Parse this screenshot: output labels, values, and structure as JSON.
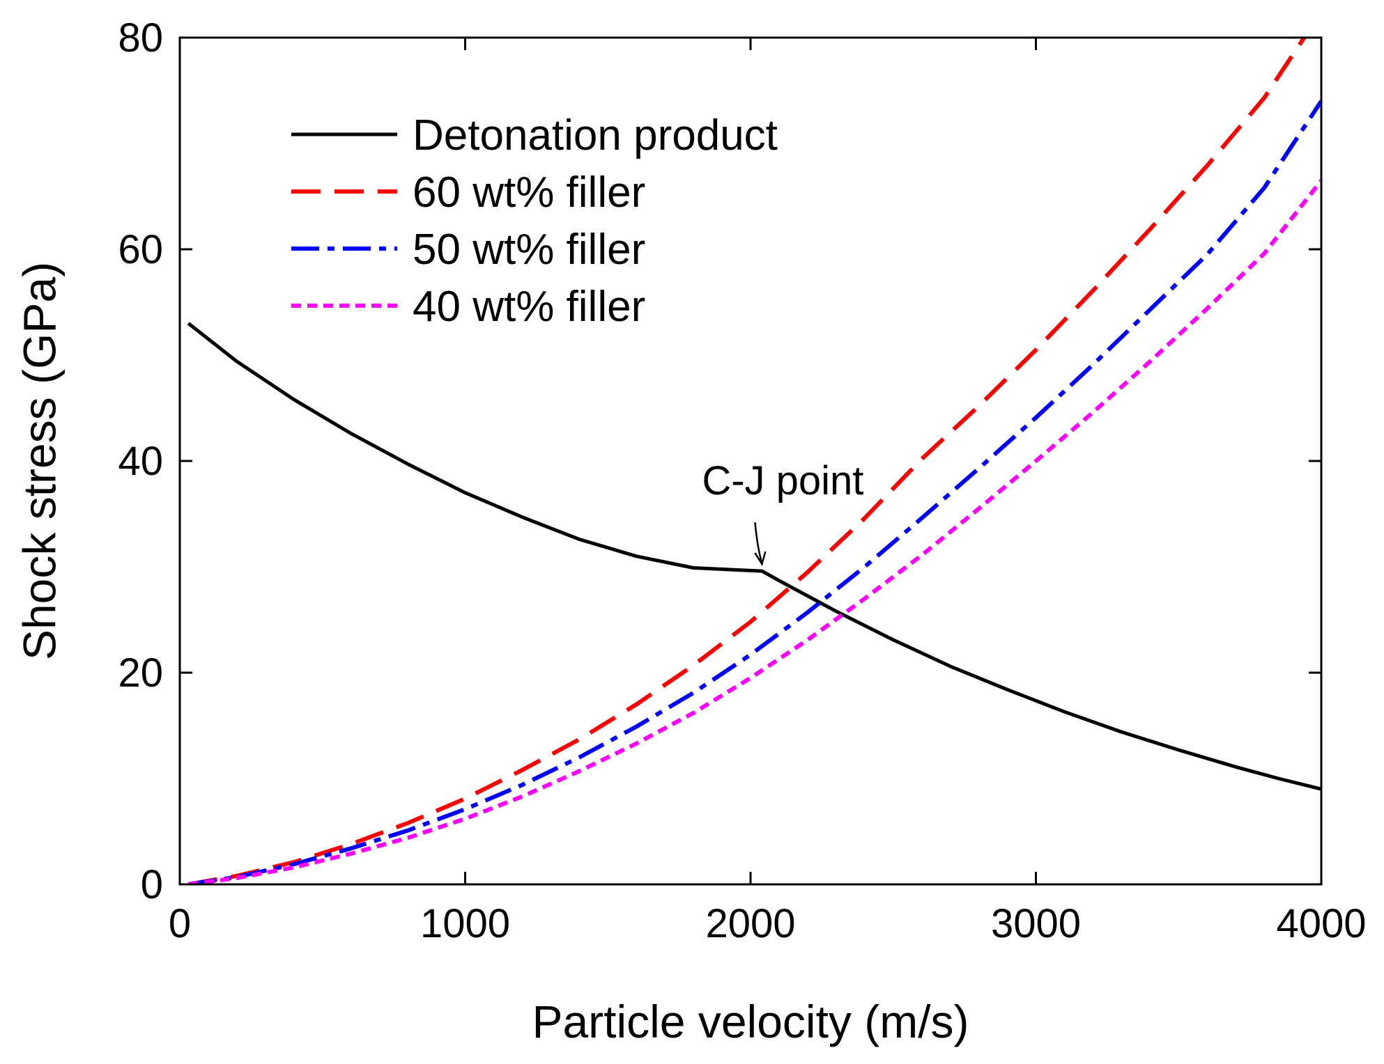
{
  "chart_data": {
    "type": "line",
    "title": "",
    "xlabel": "Particle velocity (m/s)",
    "ylabel": "Shock stress (GPa)",
    "xlim": [
      0,
      4000
    ],
    "ylim": [
      0,
      80
    ],
    "xticks": [
      0,
      1000,
      2000,
      3000,
      4000
    ],
    "yticks": [
      0,
      20,
      40,
      60,
      80
    ],
    "grid": false,
    "legend_position": "top-left",
    "series": [
      {
        "name": "Detonation product",
        "color": "#000000",
        "style": "solid",
        "x": [
          30,
          200,
          400,
          600,
          800,
          1000,
          1200,
          1400,
          1600,
          1800,
          2040,
          2100,
          2300,
          2500,
          2700,
          2900,
          3100,
          3300,
          3500,
          3700,
          3850,
          4000
        ],
        "y": [
          53,
          49.4,
          45.8,
          42.6,
          39.7,
          37.0,
          34.7,
          32.6,
          31.0,
          29.9,
          29.6,
          28.7,
          25.8,
          23.1,
          20.6,
          18.4,
          16.3,
          14.4,
          12.7,
          11.1,
          10.0,
          9.0
        ]
      },
      {
        "name": "60 wt% filler",
        "color": "#ff0000",
        "style": "dashed",
        "x": [
          30,
          200,
          400,
          600,
          800,
          1000,
          1200,
          1400,
          1600,
          1800,
          2000,
          2200,
          2400,
          2600,
          2800,
          3000,
          3200,
          3400,
          3600,
          3800,
          3940
        ],
        "y": [
          0,
          0.8,
          2.1,
          3.8,
          5.8,
          8.1,
          10.8,
          13.7,
          17.0,
          20.7,
          24.8,
          29.5,
          34.6,
          40.2,
          45.2,
          50.5,
          56.1,
          61.9,
          67.9,
          74.3,
          80.0
        ]
      },
      {
        "name": "50 wt% filler",
        "color": "#0000ff",
        "style": "dashdot",
        "x": [
          30,
          200,
          400,
          600,
          800,
          1000,
          1200,
          1400,
          1600,
          1800,
          2000,
          2200,
          2400,
          2600,
          2800,
          3000,
          3200,
          3400,
          3600,
          3800,
          4000
        ],
        "y": [
          0,
          0.7,
          1.9,
          3.4,
          5.1,
          7.1,
          9.4,
          12.0,
          14.9,
          18.1,
          21.7,
          25.7,
          30.0,
          34.6,
          39.3,
          44.1,
          49.1,
          54.3,
          59.5,
          65.8,
          74.0
        ]
      },
      {
        "name": "40 wt% filler",
        "color": "#ff00ff",
        "style": "dotted",
        "x": [
          30,
          200,
          400,
          600,
          800,
          1000,
          1200,
          1400,
          1600,
          1800,
          2000,
          2200,
          2400,
          2600,
          2800,
          3000,
          3200,
          3400,
          3600,
          3800,
          4000
        ],
        "y": [
          0,
          0.6,
          1.6,
          2.9,
          4.4,
          6.2,
          8.3,
          10.7,
          13.3,
          16.2,
          19.5,
          23.1,
          27.0,
          31.1,
          35.5,
          40.0,
          44.6,
          49.4,
          54.4,
          59.6,
          66.5
        ]
      }
    ],
    "annotations": [
      {
        "text": "C-J point",
        "x": 2040,
        "y": 29.6
      }
    ]
  }
}
